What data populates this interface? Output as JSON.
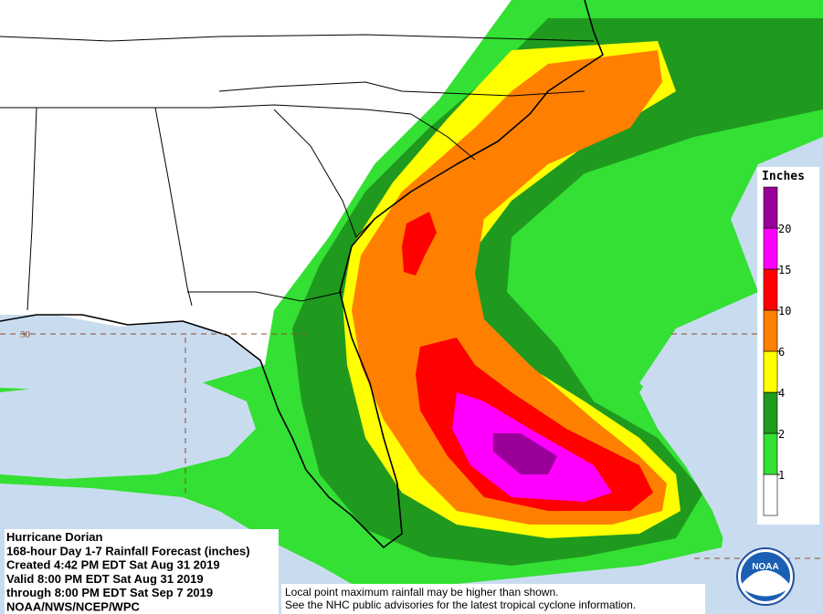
{
  "title_block": {
    "lines": [
      "Hurricane Dorian",
      "168-hour Day 1-7 Rainfall Forecast (inches)",
      "Created 4:42 PM EDT Sat Aug 31 2019",
      "Valid 8:00 PM EDT Sat Aug 31 2019",
      "through 8:00 PM EDT Sat Sep 7 2019",
      "NOAA/NWS/NCEP/WPC"
    ]
  },
  "note": {
    "lines": [
      "Local point maximum rainfall may be higher than shown.",
      "See the NHC public advisories for the latest tropical cyclone information."
    ]
  },
  "graticule": {
    "latitude_label": "30"
  },
  "legend": {
    "title": "Inches",
    "values": [
      1,
      2,
      4,
      6,
      10,
      15,
      20
    ],
    "colors": [
      "#ffffff",
      "#33e033",
      "#1f9a1f",
      "#ffff00",
      "#ff8000",
      "#ff0000",
      "#ff00ff",
      "#990099"
    ]
  },
  "logo": {
    "text": "NOAA"
  }
}
